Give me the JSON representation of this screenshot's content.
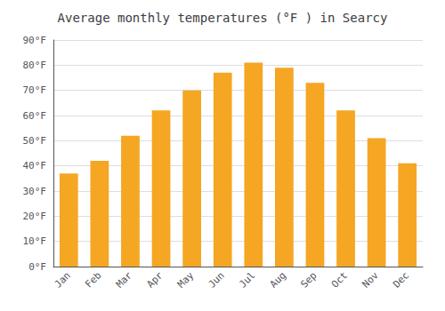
{
  "chart_data": {
    "type": "bar",
    "title": "Average monthly temperatures (°F ) in Searcy",
    "categories": [
      "Jan",
      "Feb",
      "Mar",
      "Apr",
      "May",
      "Jun",
      "Jul",
      "Aug",
      "Sep",
      "Oct",
      "Nov",
      "Dec"
    ],
    "values": [
      37,
      42,
      52,
      62,
      70,
      77,
      81,
      79,
      73,
      62,
      51,
      41
    ],
    "color": "#F5A623",
    "ylim": [
      0,
      90
    ],
    "yticks": [
      {
        "value": 0,
        "label": "0°F"
      },
      {
        "value": 10,
        "label": "10°F"
      },
      {
        "value": 20,
        "label": "20°F"
      },
      {
        "value": 30,
        "label": "30°F"
      },
      {
        "value": 40,
        "label": "40°F"
      },
      {
        "value": 50,
        "label": "50°F"
      },
      {
        "value": 60,
        "label": "60°F"
      },
      {
        "value": 70,
        "label": "70°F"
      },
      {
        "value": 80,
        "label": "80°F"
      },
      {
        "value": 90,
        "label": "90°F"
      }
    ],
    "grid": true
  }
}
